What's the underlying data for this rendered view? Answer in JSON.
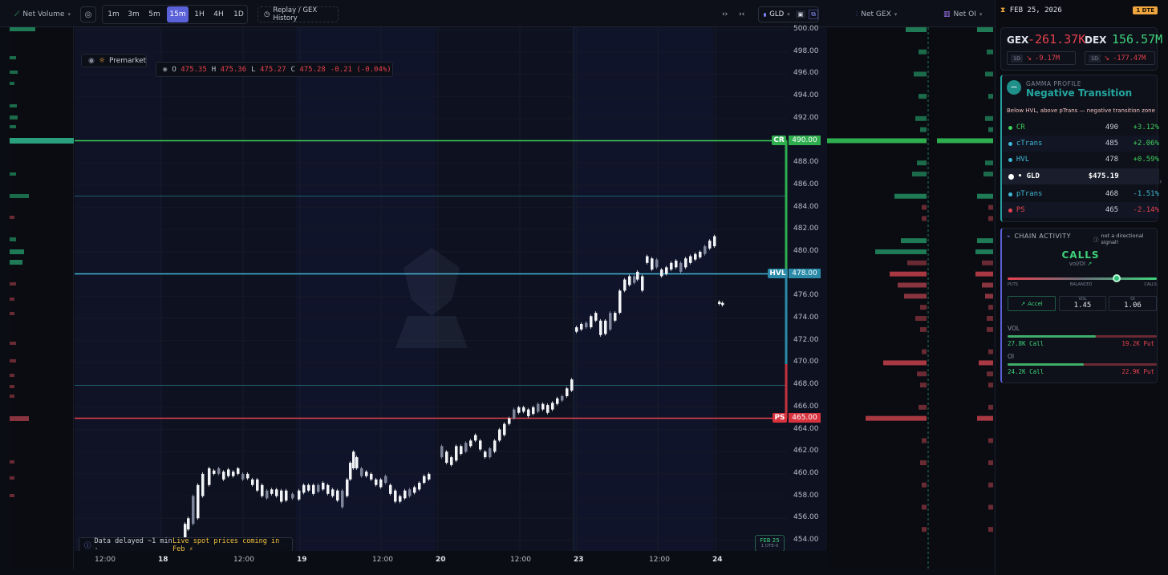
{
  "toolbar": {
    "net_volume": "Net Volume",
    "timeframes": [
      "1m",
      "3m",
      "5m",
      "15m",
      "1H",
      "4H",
      "1D"
    ],
    "active_timeframe": "15m",
    "replay": "Replay / GEX History",
    "symbol": "GLD",
    "net_gex": "Net GEX",
    "net_oi": "Net OI"
  },
  "ohlc": {
    "o_label": "O",
    "o": "475.35",
    "h_label": "H",
    "h": "475.36",
    "l_label": "L",
    "l": "475.27",
    "c_label": "C",
    "c": "475.28",
    "change": "-0.21 (-0.04%)"
  },
  "premarket": "Premarket",
  "y_axis": [
    "500.00",
    "498.00",
    "496.00",
    "494.00",
    "492.00",
    "490.00",
    "488.00",
    "486.00",
    "484.00",
    "482.00",
    "480.00",
    "478.00",
    "476.00",
    "474.00",
    "472.00",
    "470.00",
    "468.00",
    "466.00",
    "465.00",
    "464.00",
    "462.00",
    "460.00",
    "458.00",
    "456.00",
    "454.00"
  ],
  "x_axis": [
    "12:00",
    "18",
    "12:00",
    "19",
    "12:00",
    "20",
    "12:00",
    "23",
    "12:00",
    "24"
  ],
  "levels": {
    "cr": {
      "label": "CR",
      "price": "490.00"
    },
    "hvl": {
      "label": "HVL",
      "price": "478.00"
    },
    "ps": {
      "label": "PS",
      "price": "465.00"
    }
  },
  "notice": {
    "text": "Data delayed ~1 min · ",
    "highlight": "Live spot prices coming in Feb ⚡"
  },
  "date_badge": {
    "date": "FEB 25",
    "sub": "1 DTE-0"
  },
  "sidebar": {
    "date": "FEB 25, 2026",
    "dte": "1 DTE",
    "gex_label": "GEX",
    "gex_value": "-261.37K",
    "gex_period": "1D",
    "gex_change": "-9.17M",
    "dex_label": "DEX",
    "dex_value": "156.57M",
    "dex_period": "1D",
    "dex_change": "-177.47M",
    "gamma_title": "GAMMA PROFILE",
    "gamma_state": "Negative Transition",
    "gamma_desc": "Below HVL, above pTrans — negative transition zone",
    "levels": [
      {
        "name": "CR",
        "price": "490",
        "change": "+3.12%"
      },
      {
        "name": "cTrans",
        "price": "485",
        "change": "+2.06%"
      },
      {
        "name": "HVL",
        "price": "478",
        "change": "+0.59%"
      },
      {
        "name": "GLD",
        "price": "$475.19",
        "change": ""
      },
      {
        "name": "pTrans",
        "price": "468",
        "change": "-1.51%"
      },
      {
        "name": "PS",
        "price": "465",
        "change": "-2.14%"
      }
    ],
    "chain_title": "CHAIN ACTIVITY",
    "chain_note": "not a directional signal!",
    "chain_side": "CALLS",
    "chain_sub": "vol/OI",
    "slider_labels": [
      "PUTS",
      "BALANCED",
      "CALLS"
    ],
    "accel": "Accel",
    "vol_label": "VOL",
    "vol_value": "1.45",
    "oi_label": "OI",
    "oi_value": "1.06",
    "vol_section": "VOL",
    "vol_call": "27.8K Call",
    "vol_put": "19.2K Put",
    "oi_section": "OI",
    "oi_call": "24.2K Call",
    "oi_put": "22.9K Put"
  },
  "colors": {
    "green": "#2ecc71",
    "red": "#e8424f",
    "cyan": "#3fb8d6",
    "accent": "#5b61d9"
  }
}
